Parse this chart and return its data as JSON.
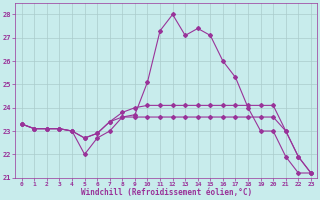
{
  "xlabel": "Windchill (Refroidissement éolien,°C)",
  "background_color": "#c8ecec",
  "line_color": "#993399",
  "grid_color": "#aacccc",
  "xlim": [
    -0.5,
    23.5
  ],
  "ylim": [
    21.0,
    28.5
  ],
  "yticks": [
    21,
    22,
    23,
    24,
    25,
    26,
    27,
    28
  ],
  "xticks": [
    0,
    1,
    2,
    3,
    4,
    5,
    6,
    7,
    8,
    9,
    10,
    11,
    12,
    13,
    14,
    15,
    16,
    17,
    18,
    19,
    20,
    21,
    22,
    23
  ],
  "series": [
    [
      23.3,
      23.1,
      23.1,
      23.1,
      23.0,
      22.0,
      22.7,
      23.0,
      23.6,
      23.7,
      25.1,
      27.3,
      28.0,
      27.1,
      27.4,
      27.1,
      26.0,
      25.3,
      24.0,
      23.0,
      23.0,
      21.9,
      21.2,
      21.2
    ],
    [
      23.3,
      23.1,
      23.1,
      23.1,
      23.0,
      22.7,
      22.9,
      23.4,
      23.6,
      23.6,
      23.6,
      23.6,
      23.6,
      23.6,
      23.6,
      23.6,
      23.6,
      23.6,
      23.6,
      23.6,
      23.6,
      23.0,
      21.9,
      21.2
    ],
    [
      23.3,
      23.1,
      23.1,
      23.1,
      23.0,
      22.7,
      22.9,
      23.4,
      23.8,
      24.0,
      24.1,
      24.1,
      24.1,
      24.1,
      24.1,
      24.1,
      24.1,
      24.1,
      24.1,
      24.1,
      24.1,
      23.0,
      21.9,
      21.2
    ]
  ]
}
